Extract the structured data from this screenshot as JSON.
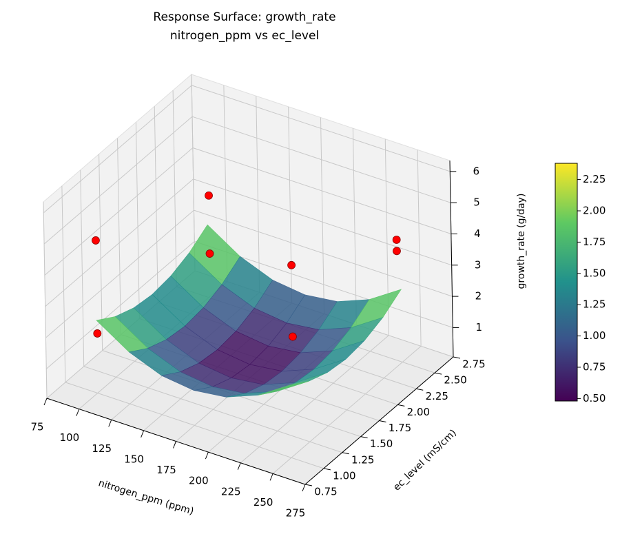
{
  "chart_data": {
    "type": "surface3d",
    "title": "Response Surface: growth_rate",
    "subtitle": "nitrogen_ppm vs ec_level",
    "x_label": "nitrogen_ppm (ppm)",
    "y_label": "ec_level (mS/cm)",
    "z_label": "growth_rate (g/day)",
    "xlim": [
      75,
      275
    ],
    "xticks": [
      75,
      100,
      125,
      150,
      175,
      200,
      225,
      250,
      275
    ],
    "ylim": [
      0.75,
      2.75
    ],
    "yticks": [
      0.75,
      {
        "value": 1,
        "label": "1.00"
      },
      1.25,
      {
        "value": 1.5,
        "label": "1.50"
      },
      1.75,
      {
        "value": 2,
        "label": "2.00"
      },
      2.25,
      {
        "value": 2.5,
        "label": "2.50"
      },
      2.75
    ],
    "zlim": [
      0.06,
      6.35
    ],
    "zticks": [
      1,
      2,
      3,
      4,
      5,
      6
    ],
    "grid": true,
    "surface": {
      "colormap": "viridis",
      "alpha": 0.85,
      "x": [
        100,
        125,
        150,
        175,
        200,
        225,
        250
      ],
      "y": [
        1.0,
        1.25,
        1.5,
        1.75,
        2.0,
        2.25,
        2.5
      ],
      "z": [
        [
          2.39,
          1.72,
          1.31,
          1.18,
          1.31,
          1.72,
          2.39
        ],
        [
          2.0,
          1.33,
          0.92,
          0.79,
          0.92,
          1.33,
          2.0
        ],
        [
          1.77,
          1.1,
          0.69,
          0.56,
          0.69,
          1.1,
          1.77
        ],
        [
          1.69,
          1.02,
          0.61,
          0.48,
          0.61,
          1.02,
          1.69
        ],
        [
          1.77,
          1.1,
          0.69,
          0.56,
          0.69,
          1.1,
          1.77
        ],
        [
          2.0,
          1.33,
          0.92,
          0.79,
          0.92,
          1.33,
          2.0
        ],
        [
          2.39,
          1.72,
          1.31,
          1.18,
          1.31,
          1.72,
          2.39
        ]
      ]
    },
    "points": {
      "color": "#ff0000",
      "x": [
        100,
        100,
        150,
        150,
        200,
        200,
        250,
        250
      ],
      "y": [
        1.01,
        1.01,
        1.67,
        1.67,
        1.9,
        1.9,
        2.45,
        2.45
      ],
      "z": [
        1.95,
        4.93,
        3.85,
        5.71,
        1.41,
        3.7,
        3.72,
        4.08
      ]
    },
    "colorbar": {
      "lim": [
        0.48,
        2.38
      ],
      "ticks": [
        {
          "value": 0.5,
          "label": "0.50"
        },
        0.75,
        {
          "value": 1,
          "label": "1.00"
        },
        1.25,
        {
          "value": 1.5,
          "label": "1.50"
        },
        1.75,
        {
          "value": 2,
          "label": "2.00"
        },
        2.25
      ]
    }
  }
}
